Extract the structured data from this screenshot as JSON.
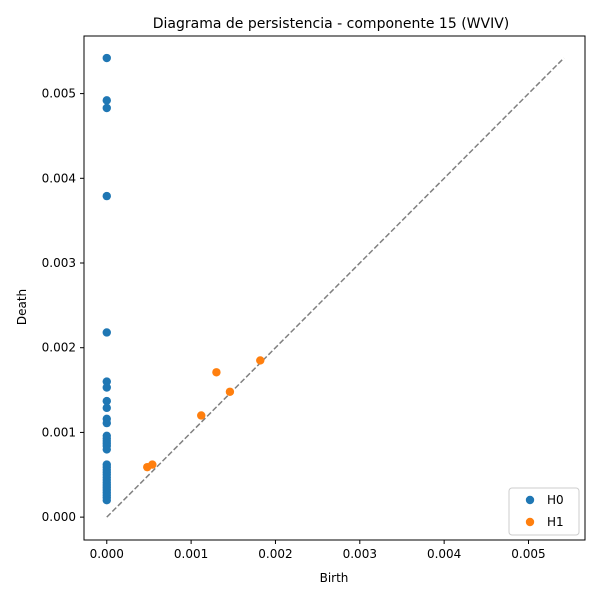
{
  "chart_data": {
    "type": "scatter",
    "title": "Diagrama de persistencia - componente 15 (WVIV)",
    "xlabel": "Birth",
    "ylabel": "Death",
    "xlim": [
      -0.00027,
      0.00567
    ],
    "ylim": [
      -0.00027,
      0.00568
    ],
    "x_ticks": [
      0.0,
      0.001,
      0.002,
      0.003,
      0.004,
      0.005
    ],
    "x_tick_labels": [
      "0.000",
      "0.001",
      "0.002",
      "0.003",
      "0.004",
      "0.005"
    ],
    "y_ticks": [
      0.0,
      0.001,
      0.002,
      0.003,
      0.004,
      0.005
    ],
    "y_tick_labels": [
      "0.000",
      "0.001",
      "0.002",
      "0.003",
      "0.004",
      "0.005"
    ],
    "grid": false,
    "legend_position": "bottom-right",
    "diagonal": {
      "from": [
        0.0,
        0.0
      ],
      "to": [
        0.00542,
        0.00542
      ],
      "color": "#808080",
      "style": "dashed"
    },
    "series": [
      {
        "name": "H0",
        "color": "#1f77b4",
        "points": [
          [
            0,
            0.00542
          ],
          [
            0,
            0.00492
          ],
          [
            0,
            0.00483
          ],
          [
            0,
            0.00379
          ],
          [
            0,
            0.00218
          ],
          [
            0,
            0.0016
          ],
          [
            0,
            0.00153
          ],
          [
            0,
            0.00137
          ],
          [
            0,
            0.00129
          ],
          [
            0,
            0.00116
          ],
          [
            0,
            0.00111
          ],
          [
            0,
            0.00096
          ],
          [
            0,
            0.00093
          ],
          [
            0,
            0.0009
          ],
          [
            0,
            0.00087
          ],
          [
            0,
            0.00084
          ],
          [
            0,
            0.0008
          ],
          [
            0,
            0.00062
          ],
          [
            0,
            0.00059
          ],
          [
            0,
            0.00056
          ],
          [
            0,
            0.00053
          ],
          [
            0,
            0.0005
          ],
          [
            0,
            0.00047
          ],
          [
            0,
            0.00044
          ],
          [
            0,
            0.00041
          ],
          [
            0,
            0.00038
          ],
          [
            0,
            0.00035
          ],
          [
            0,
            0.00032
          ],
          [
            0,
            0.00029
          ],
          [
            0,
            0.00026
          ],
          [
            0,
            0.00023
          ],
          [
            0,
            0.0002
          ]
        ]
      },
      {
        "name": "H1",
        "color": "#ff7f0e",
        "points": [
          [
            0.00182,
            0.00185
          ],
          [
            0.0013,
            0.00171
          ],
          [
            0.00146,
            0.00148
          ],
          [
            0.00112,
            0.0012
          ],
          [
            0.00054,
            0.00062
          ],
          [
            0.00048,
            0.00059
          ]
        ]
      }
    ]
  }
}
